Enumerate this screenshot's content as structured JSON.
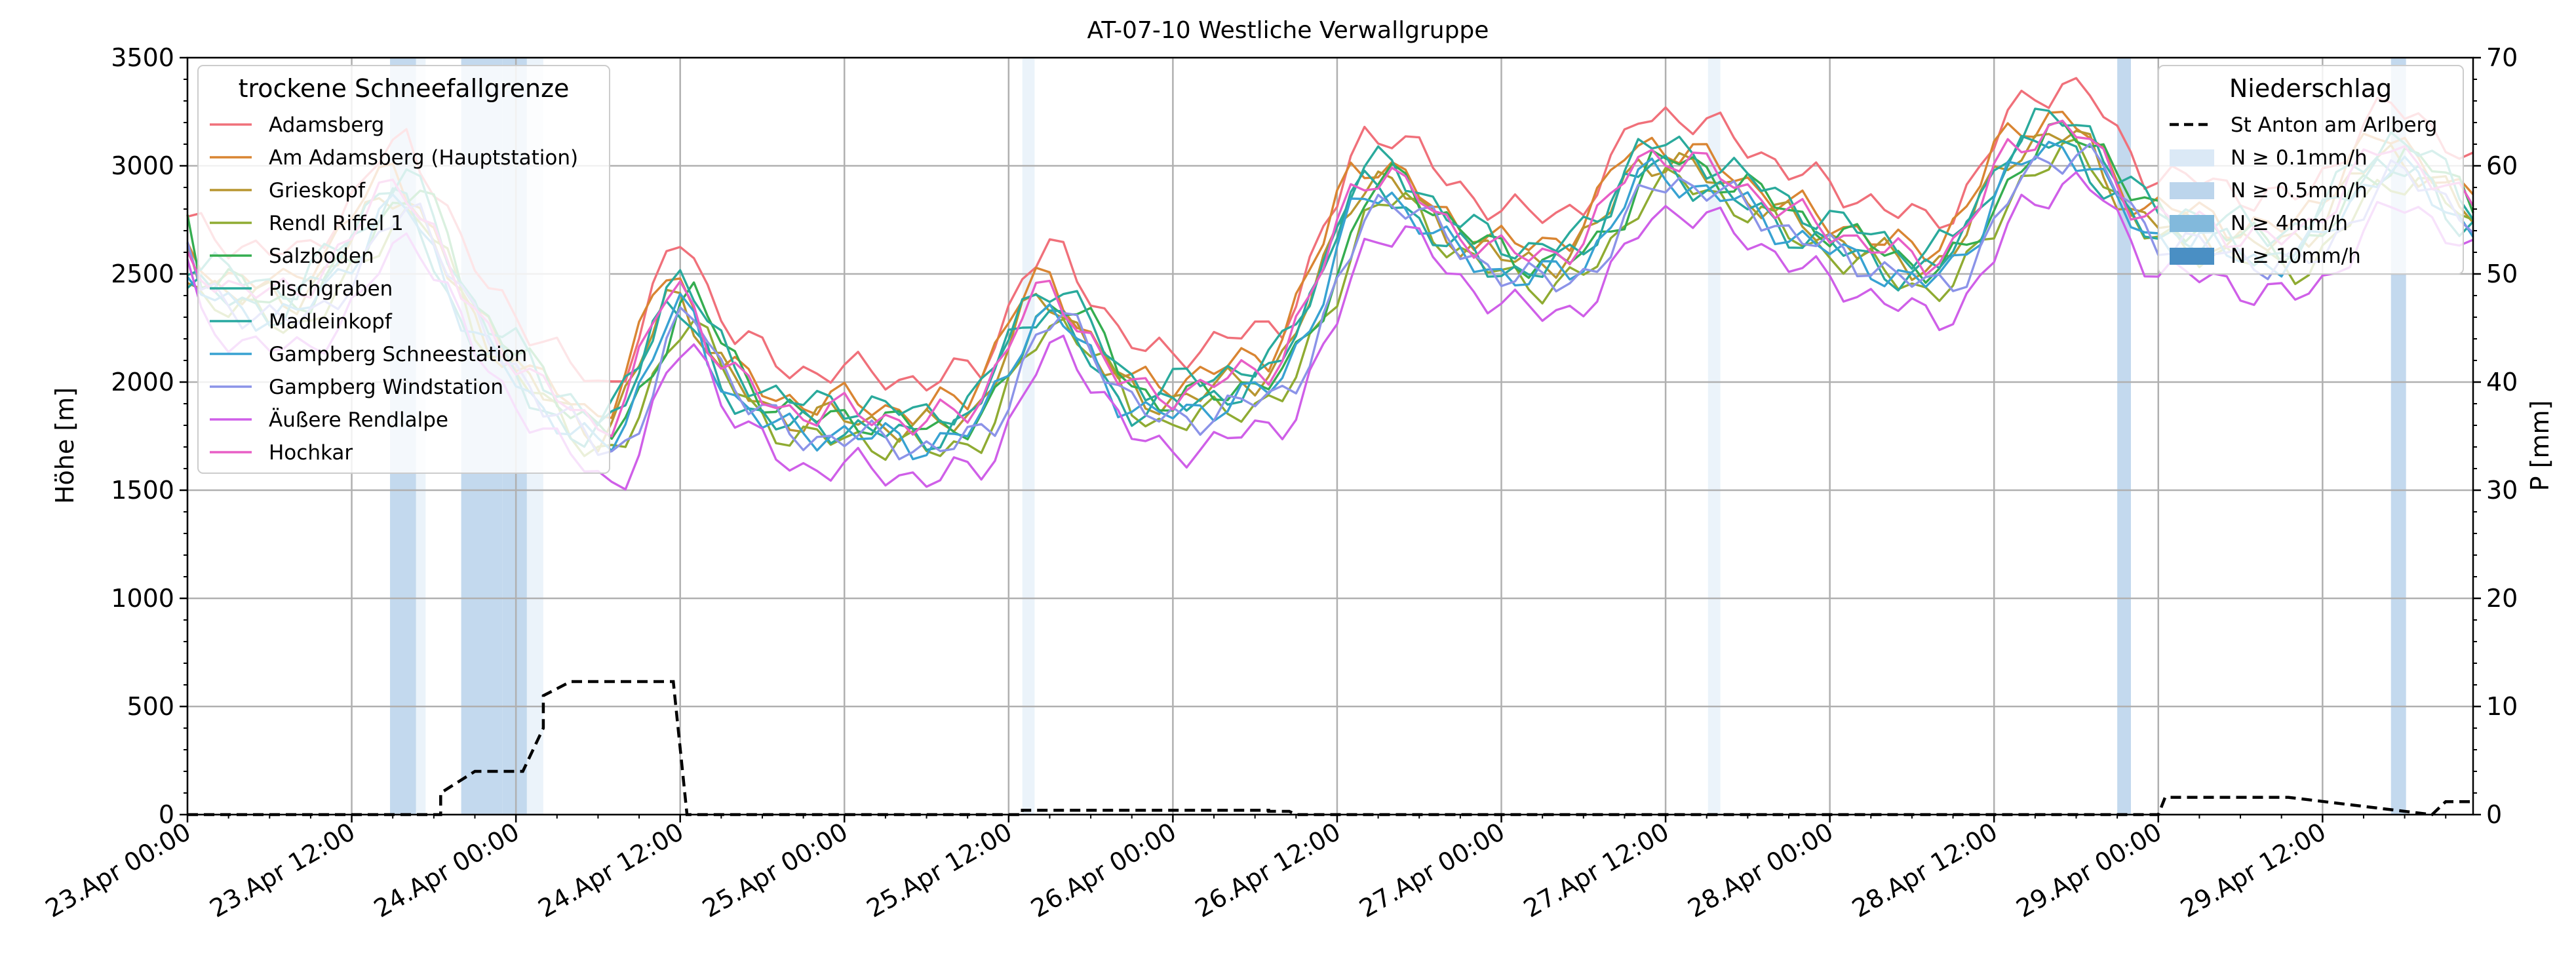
{
  "chart_data": {
    "type": "line",
    "title": "AT-07-10 Westliche Verwallgruppe",
    "ylabel": "Höhe [m]",
    "y2label": "P [mm]",
    "ylim": [
      0,
      3500
    ],
    "y2lim": [
      0,
      70
    ],
    "grid": true,
    "x_unit": "hours since 23.Apr 00:00",
    "xlim": [
      0,
      167
    ],
    "xticks": [
      {
        "x": 0,
        "label": "23.Apr 00:00"
      },
      {
        "x": 12,
        "label": "23.Apr 12:00"
      },
      {
        "x": 24,
        "label": "24.Apr 00:00"
      },
      {
        "x": 36,
        "label": "24.Apr 12:00"
      },
      {
        "x": 48,
        "label": "25.Apr 00:00"
      },
      {
        "x": 60,
        "label": "25.Apr 12:00"
      },
      {
        "x": 72,
        "label": "26.Apr 00:00"
      },
      {
        "x": 84,
        "label": "26.Apr 12:00"
      },
      {
        "x": 96,
        "label": "27.Apr 00:00"
      },
      {
        "x": 108,
        "label": "27.Apr 12:00"
      },
      {
        "x": 120,
        "label": "28.Apr 00:00"
      },
      {
        "x": 132,
        "label": "28.Apr 12:00"
      },
      {
        "x": 144,
        "label": "29.Apr 00:00"
      },
      {
        "x": 156,
        "label": "29.Apr 12:00"
      }
    ],
    "yticks": [
      0,
      500,
      1000,
      1500,
      2000,
      2500,
      3000,
      3500
    ],
    "y2ticks": [
      0,
      10,
      20,
      30,
      40,
      50,
      60,
      70
    ],
    "legend_left": {
      "title": "trockene Schneefallgrenze",
      "placement": "top-left",
      "entries": [
        "Adamsberg",
        "Am Adamsberg (Hauptstation)",
        "Grieskopf",
        "Rendl Riffel 1",
        "Salzboden",
        "Pischgraben",
        "Madleinkopf",
        "Gampberg Schneestation",
        "Gampberg Windstation",
        "Äußere Rendlalpe",
        "Hochkar"
      ]
    },
    "legend_right": {
      "title": "Niederschlag",
      "placement": "top-right",
      "entries": [
        "St Anton am Arlberg",
        "N ≥ 0.1mm/h",
        "N ≥ 0.5mm/h",
        "N ≥ 4mm/h",
        "N ≥ 10mm/h"
      ]
    },
    "base_profile_x": [
      0,
      4,
      8,
      12,
      14,
      16,
      18,
      20,
      22,
      24,
      26,
      28,
      30,
      31,
      32,
      33,
      34,
      35,
      36,
      37,
      38,
      40,
      42,
      44,
      46,
      48,
      50,
      52,
      54,
      56,
      58,
      60,
      61,
      62,
      63,
      64,
      66,
      68,
      70,
      72,
      74,
      76,
      78,
      80,
      82,
      84,
      85,
      86,
      88,
      90,
      92,
      94,
      96,
      98,
      100,
      102,
      104,
      106,
      108,
      110,
      111,
      113,
      115,
      117,
      119,
      121,
      123,
      125,
      127,
      129,
      131,
      133,
      135,
      137,
      139,
      141,
      143,
      145,
      147,
      149,
      151,
      153,
      155,
      157,
      159,
      161,
      163,
      165,
      167
    ],
    "base_profile_y": [
      2450,
      2350,
      2300,
      2550,
      2750,
      2850,
      2650,
      2350,
      2150,
      2050,
      1900,
      1800,
      1700,
      1720,
      1800,
      1950,
      2100,
      2280,
      2380,
      2300,
      2150,
      1950,
      1850,
      1780,
      1770,
      1780,
      1760,
      1740,
      1720,
      1750,
      1800,
      2050,
      2200,
      2280,
      2330,
      2300,
      2150,
      1950,
      1850,
      1860,
      1880,
      1920,
      1950,
      2000,
      2250,
      2550,
      2750,
      2860,
      2880,
      2780,
      2650,
      2580,
      2520,
      2490,
      2500,
      2550,
      2700,
      2950,
      2970,
      2920,
      2900,
      2860,
      2780,
      2700,
      2650,
      2600,
      2560,
      2500,
      2460,
      2520,
      2700,
      2950,
      3050,
      3100,
      3050,
      2850,
      2700,
      2660,
      2650,
      2620,
      2580,
      2560,
      2600,
      2750,
      2900,
      3000,
      2950,
      2850,
      2700
    ],
    "series": [
      {
        "name": "Adamsberg",
        "color": "#f0707a",
        "offset": 280
      },
      {
        "name": "Am Adamsberg (Hauptstation)",
        "color": "#d98532",
        "offset": 140
      },
      {
        "name": "Grieskopf",
        "color": "#b89630",
        "offset": 60
      },
      {
        "name": "Rendl Riffel 1",
        "color": "#8fab32",
        "offset": -40
      },
      {
        "name": "Salzboden",
        "color": "#35ad50",
        "offset": 60
      },
      {
        "name": "Pischgraben",
        "color": "#2aaa9c",
        "offset": 130
      },
      {
        "name": "Madleinkopf",
        "color": "#28a8a0",
        "offset": 20
      },
      {
        "name": "Gampberg Schneestation",
        "color": "#38a2d2",
        "offset": -10
      },
      {
        "name": "Gampberg Windstation",
        "color": "#8b93e8",
        "offset": -30
      },
      {
        "name": "Äußere Rendlalpe",
        "color": "#cf5fe8",
        "offset": -170
      },
      {
        "name": "Hochkar",
        "color": "#e85ec6",
        "offset": 90
      }
    ],
    "precip_series": {
      "name": "St Anton am Arlberg",
      "color": "#000000",
      "x": [
        0,
        18.5,
        18.5,
        21,
        24.5,
        26,
        26,
        28,
        30,
        35,
        35.5,
        36.5,
        61,
        61,
        70,
        79,
        79,
        80.5,
        81,
        144,
        144.5,
        152,
        153.5,
        164,
        165,
        167
      ],
      "y": [
        0,
        0,
        2,
        4,
        4,
        8,
        11,
        12.3,
        12.3,
        12.3,
        12.3,
        0,
        0,
        0.4,
        0.4,
        0.4,
        0.3,
        0.3,
        0,
        0,
        1.6,
        1.6,
        1.6,
        0,
        1.2,
        1.2
      ]
    },
    "precip_bands": [
      {
        "x0": 14.8,
        "x1": 16.7,
        "level": 2
      },
      {
        "x0": 16.7,
        "x1": 17.4,
        "level": 1
      },
      {
        "x0": 20.0,
        "x1": 23.0,
        "level": 2
      },
      {
        "x0": 23.0,
        "x1": 24.8,
        "level": 2
      },
      {
        "x0": 24.8,
        "x1": 26.0,
        "level": 1
      },
      {
        "x0": 61.0,
        "x1": 61.9,
        "level": 1
      },
      {
        "x0": 111.1,
        "x1": 112.0,
        "level": 1
      },
      {
        "x0": 141.0,
        "x1": 142.0,
        "level": 2
      },
      {
        "x0": 161.0,
        "x1": 162.1,
        "level": 2
      }
    ],
    "band_colors": [
      "#dbe9f6",
      "#bcd5ec",
      "#82b9dc",
      "#4a8fc4"
    ],
    "band_opacity": [
      0.55,
      0.9,
      0.9,
      0.9
    ]
  }
}
